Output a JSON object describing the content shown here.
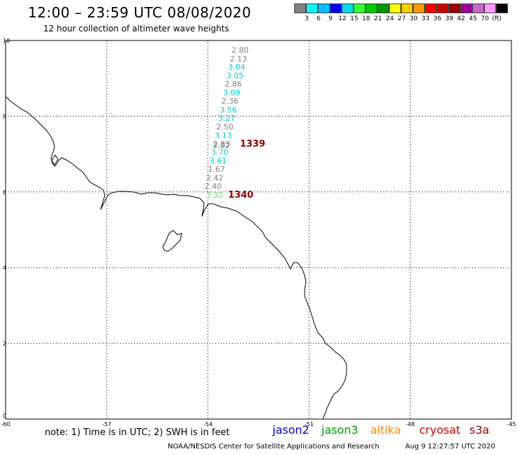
{
  "title": "12:00 – 23:59 UTC 08/08/2020",
  "subtitle": "12 hour collection of altimeter wave heights",
  "scale": {
    "colors": [
      "#808080",
      "#00ffff",
      "#00bfff",
      "#0000ff",
      "#00dfdf",
      "#33ff33",
      "#00cc00",
      "#009900",
      "#ffff00",
      "#ffcc00",
      "#ff9900",
      "#ff0000",
      "#cc0000",
      "#990000",
      "#990099",
      "#cc66cc",
      "#ff99ff",
      "#000000"
    ],
    "ticks": [
      "3",
      "6",
      "9",
      "12",
      "15",
      "18",
      "21",
      "24",
      "27",
      "30",
      "33",
      "36",
      "39",
      "42",
      "45",
      "70",
      "(ft)"
    ]
  },
  "map": {
    "lon_range": [
      -60,
      -45
    ],
    "lat_range": [
      0,
      10
    ],
    "lon_ticks": [
      "-60",
      "-57",
      "-54",
      "-51",
      "-48",
      "-45"
    ],
    "lat_ticks": [
      "10",
      "8",
      "6",
      "4",
      "2",
      "0"
    ],
    "wave_heights": [
      {
        "value": "2.80",
        "lon": -53.3,
        "lat": 9.68,
        "color": "#808080"
      },
      {
        "value": "2.13",
        "lon": -53.35,
        "lat": 9.45,
        "color": "#808080"
      },
      {
        "value": "3.04",
        "lon": -53.4,
        "lat": 9.23,
        "color": "#00cccc"
      },
      {
        "value": "3.05",
        "lon": -53.45,
        "lat": 9.0,
        "color": "#00cccc"
      },
      {
        "value": "2.86",
        "lon": -53.5,
        "lat": 8.78,
        "color": "#808080"
      },
      {
        "value": "3.09",
        "lon": -53.55,
        "lat": 8.55,
        "color": "#00cccc"
      },
      {
        "value": "2.36",
        "lon": -53.6,
        "lat": 8.33,
        "color": "#808080"
      },
      {
        "value": "3.56",
        "lon": -53.65,
        "lat": 8.1,
        "color": "#00cccc"
      },
      {
        "value": "3.27",
        "lon": -53.7,
        "lat": 7.88,
        "color": "#00cccc"
      },
      {
        "value": "2.50",
        "lon": -53.75,
        "lat": 7.65,
        "color": "#808080"
      },
      {
        "value": "3.13",
        "lon": -53.8,
        "lat": 7.43,
        "color": "#00cccc"
      },
      {
        "value": "2.83",
        "lon": -53.85,
        "lat": 7.2,
        "color": "#808080"
      },
      {
        "value": "2.82",
        "lon": -53.85,
        "lat": 7.16,
        "color": "#808080"
      },
      {
        "value": "3.70",
        "lon": -53.9,
        "lat": 6.98,
        "color": "#00cccc"
      },
      {
        "value": "3.61",
        "lon": -53.95,
        "lat": 6.75,
        "color": "#00cccc"
      },
      {
        "value": "1.67",
        "lon": -54.0,
        "lat": 6.53,
        "color": "#808080"
      },
      {
        "value": "2.42",
        "lon": -54.05,
        "lat": 6.3,
        "color": "#808080"
      },
      {
        "value": "2.40",
        "lon": -54.1,
        "lat": 6.08,
        "color": "#808080"
      },
      {
        "value": "3.32",
        "lon": -54.05,
        "lat": 5.85,
        "color": "#66dd66"
      }
    ],
    "pass_labels": [
      {
        "value": "1339",
        "lon": -53.05,
        "lat": 7.2
      },
      {
        "value": "1340",
        "lon": -53.4,
        "lat": 5.85
      }
    ]
  },
  "note": "note:  1) Time is in UTC;  2) SWH is in feet",
  "legend": [
    {
      "name": "jason2",
      "color": "#0000cc"
    },
    {
      "name": "jason3",
      "color": "#009900"
    },
    {
      "name": "altika",
      "color": "#ff8800"
    },
    {
      "name": "cryosat",
      "color": "#cc0000"
    },
    {
      "name": "s3a",
      "color": "#990000"
    }
  ],
  "credit": "NOAA/NESDIS Center for Satellite Applications and Research",
  "credit_time": "Aug  9 12:27:57 UTC 2020"
}
